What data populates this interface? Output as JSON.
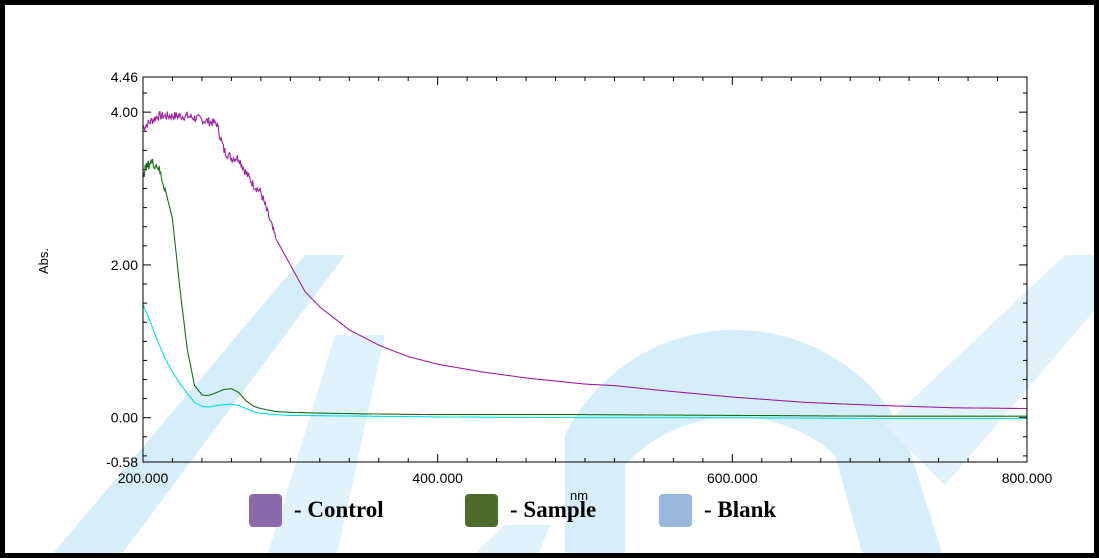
{
  "chart_data": {
    "type": "line",
    "title": "",
    "xlabel": "nm",
    "ylabel": "Abs.",
    "xlim": [
      200,
      800
    ],
    "ylim": [
      -0.58,
      4.46
    ],
    "x_ticks": [
      "200.000",
      "400.000",
      "600.000",
      "800.000"
    ],
    "y_ticks": [
      "4.46",
      "4.00",
      "2.00",
      "0.00",
      "-0.58"
    ],
    "grid": false,
    "series": [
      {
        "color": "#a020a0",
        "x": [
          200,
          210,
          220,
          230,
          240,
          250,
          255,
          260,
          265,
          270,
          275,
          280,
          285,
          290,
          300,
          310,
          320,
          340,
          360,
          380,
          400,
          430,
          460,
          500,
          520,
          550,
          600,
          650,
          700,
          750,
          800
        ],
        "y": [
          3.8,
          3.95,
          3.95,
          3.95,
          3.9,
          3.85,
          3.5,
          3.4,
          3.4,
          3.2,
          3.05,
          2.95,
          2.65,
          2.35,
          2.0,
          1.65,
          1.45,
          1.15,
          0.95,
          0.8,
          0.7,
          0.6,
          0.52,
          0.44,
          0.42,
          0.36,
          0.27,
          0.2,
          0.16,
          0.13,
          0.12
        ]
      },
      {
        "color": "#1a6b1a",
        "x": [
          200,
          205,
          210,
          215,
          220,
          225,
          230,
          235,
          240,
          243,
          246,
          250,
          255,
          260,
          265,
          270,
          275,
          280,
          285,
          290,
          300,
          320,
          350,
          400,
          500,
          600,
          700,
          800
        ],
        "y": [
          3.2,
          3.35,
          3.3,
          3.0,
          2.6,
          1.7,
          0.9,
          0.42,
          0.3,
          0.29,
          0.3,
          0.33,
          0.37,
          0.38,
          0.33,
          0.22,
          0.15,
          0.12,
          0.1,
          0.08,
          0.07,
          0.06,
          0.05,
          0.04,
          0.04,
          0.03,
          0.02,
          0.02
        ]
      },
      {
        "color": "#00e0e0",
        "x": [
          200,
          205,
          210,
          215,
          220,
          225,
          230,
          235,
          240,
          245,
          250,
          255,
          260,
          265,
          270,
          275,
          280,
          290,
          300,
          350,
          400,
          500,
          600,
          700,
          800
        ],
        "y": [
          1.48,
          1.25,
          1.0,
          0.78,
          0.6,
          0.45,
          0.32,
          0.2,
          0.15,
          0.14,
          0.16,
          0.17,
          0.18,
          0.16,
          0.12,
          0.08,
          0.06,
          0.04,
          0.03,
          0.02,
          0.01,
          0.0,
          0.0,
          -0.01,
          -0.01
        ]
      }
    ],
    "legend": [
      {
        "label": "- Control",
        "color": "#8a6aaa"
      },
      {
        "label": "- Sample",
        "color": "#4d6b2b"
      },
      {
        "label": "- Blank",
        "color": "#9ab8dc"
      }
    ]
  }
}
